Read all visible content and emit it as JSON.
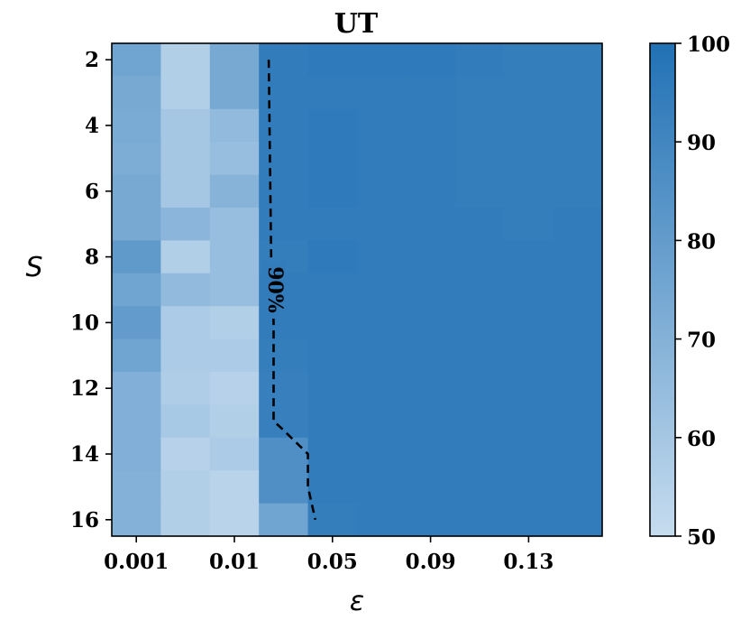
{
  "chart_data": {
    "type": "heatmap",
    "title": "UT",
    "xlabel": "ε",
    "ylabel": "S",
    "x_ticks": [
      "0.001",
      "0.01",
      "0.05",
      "0.09",
      "0.13"
    ],
    "y_ticks": [
      "2",
      "4",
      "6",
      "8",
      "10",
      "12",
      "14",
      "16"
    ],
    "rows": [
      "2",
      "3",
      "4",
      "5",
      "6",
      "7",
      "8",
      "9",
      "10",
      "11",
      "12",
      "13",
      "14",
      "15",
      "16"
    ],
    "colorbar": {
      "min": 50,
      "max": 100,
      "ticks": [
        "50",
        "60",
        "70",
        "80",
        "90",
        "100"
      ],
      "low_color": "#c6dcef",
      "high_color": "#2171b5"
    },
    "values": [
      [
        76,
        56,
        74,
        95,
        96,
        96,
        96,
        95,
        94,
        94
      ],
      [
        74,
        56,
        74,
        95,
        95,
        95,
        95,
        94,
        94,
        94
      ],
      [
        73,
        60,
        66,
        95,
        96,
        95,
        95,
        94,
        94,
        94
      ],
      [
        72,
        60,
        64,
        95,
        96,
        95,
        95,
        94,
        94,
        94
      ],
      [
        74,
        60,
        69,
        95,
        96,
        95,
        95,
        94,
        94,
        94
      ],
      [
        74,
        68,
        64,
        95,
        95,
        95,
        95,
        95,
        94,
        95
      ],
      [
        81,
        56,
        64,
        94,
        96,
        95,
        95,
        95,
        95,
        95
      ],
      [
        76,
        66,
        64,
        95,
        95,
        95,
        95,
        95,
        95,
        95
      ],
      [
        80,
        58,
        56,
        95,
        95,
        95,
        95,
        95,
        95,
        95
      ],
      [
        76,
        58,
        58,
        94,
        95,
        95,
        95,
        95,
        95,
        95
      ],
      [
        71,
        57,
        55,
        93,
        95,
        95,
        95,
        95,
        95,
        95
      ],
      [
        71,
        59,
        56,
        93,
        95,
        95,
        95,
        95,
        95,
        95
      ],
      [
        71,
        55,
        58,
        86,
        95,
        95,
        95,
        95,
        95,
        95
      ],
      [
        70,
        56,
        54,
        86,
        95,
        95,
        95,
        95,
        95,
        95
      ],
      [
        70,
        56,
        54,
        76,
        94,
        95,
        95,
        95,
        95,
        95
      ]
    ],
    "contour": {
      "level_label": "90%",
      "points": [
        [
          0.024,
          2
        ],
        [
          0.025,
          8
        ],
        [
          0.026,
          10
        ],
        [
          0.026,
          13
        ],
        [
          0.029,
          13.2
        ],
        [
          0.04,
          14
        ],
        [
          0.04,
          15
        ],
        [
          0.043,
          16
        ]
      ]
    }
  }
}
